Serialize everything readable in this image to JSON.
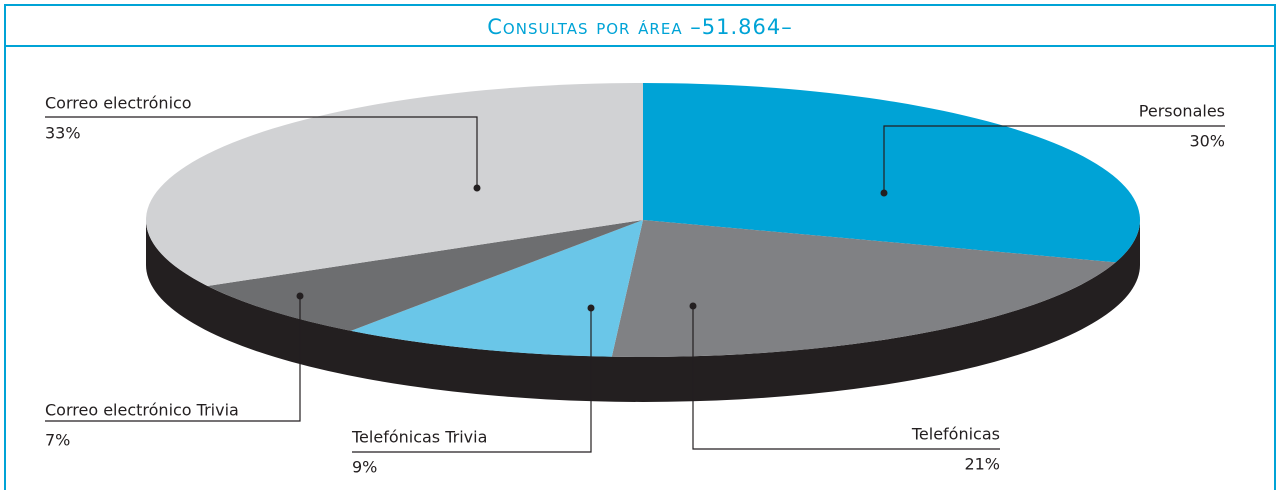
{
  "chart_data": {
    "type": "pie",
    "title": "Consultas por área –51.864–",
    "categories": [
      "Personales",
      "Telefónicas",
      "Telefónicas Trivia",
      "Correo electrónico Trivia",
      "Correo electrónico"
    ],
    "values": [
      30,
      21,
      9,
      7,
      33
    ],
    "value_labels": [
      "30%",
      "21%",
      "9%",
      "7%",
      "33%"
    ],
    "colors": [
      "#00a3d6",
      "#808184",
      "#6ac6e8",
      "#6d6e70",
      "#d1d2d4"
    ]
  }
}
